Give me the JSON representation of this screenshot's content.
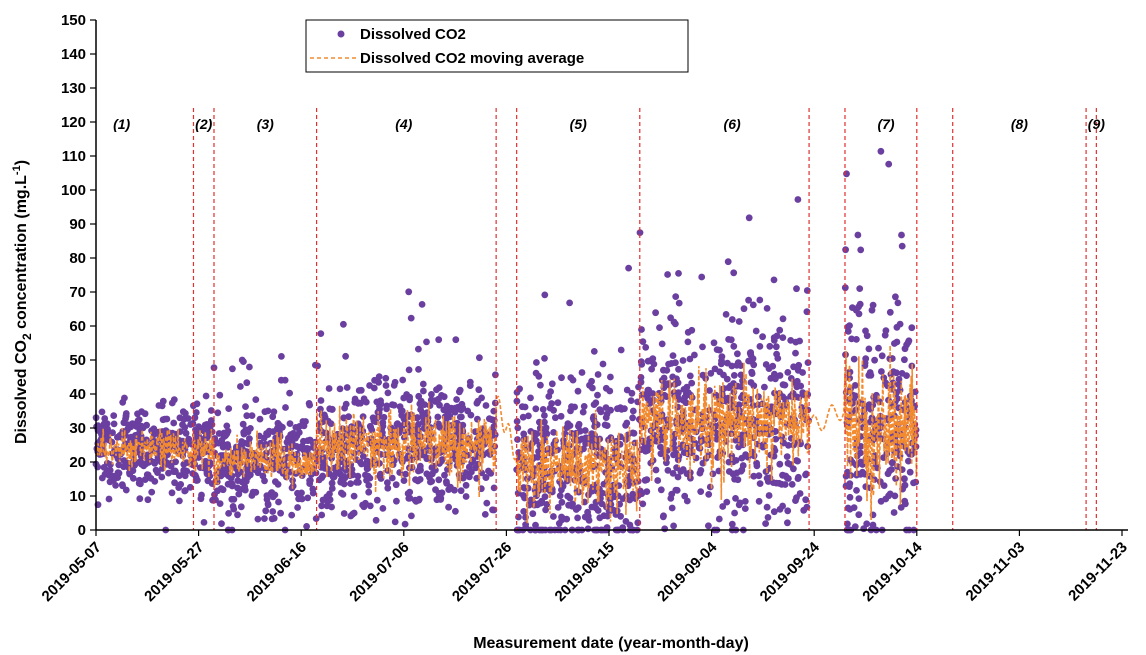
{
  "chart_data": {
    "type": "scatter",
    "ylabel": "Dissolved CO",
    "ylabel_sub": "2",
    "ylabel_rest": " concentration (mg.L",
    "ylabel_sup": "-1",
    "ylabel_end": ")",
    "xlabel": "Measurement date (year-month-day)",
    "ylim": [
      0,
      150
    ],
    "yticks": [
      0,
      10,
      20,
      30,
      40,
      50,
      60,
      70,
      80,
      90,
      100,
      110,
      120,
      130,
      140,
      150
    ],
    "xlim": [
      "2019-05-07",
      "2019-11-23"
    ],
    "xticks": [
      "2019-05-07",
      "2019-05-27",
      "2019-06-16",
      "2019-07-06",
      "2019-07-26",
      "2019-08-15",
      "2019-09-04",
      "2019-09-24",
      "2019-10-14",
      "2019-11-03",
      "2019-11-23"
    ],
    "legend": {
      "position": "top-center"
    },
    "colors": {
      "points": "#6a3fa0",
      "average": "#f28b30",
      "period_lines": "#e03030"
    },
    "series": [
      {
        "name": "Dissolved CO2",
        "style": "points"
      },
      {
        "name": "Dissolved CO2 moving average",
        "style": "dashed-line"
      }
    ],
    "period_boundaries": [
      "2019-05-26",
      "2019-05-30",
      "2019-06-19",
      "2019-07-24",
      "2019-07-28",
      "2019-08-21",
      "2019-09-23",
      "2019-09-30",
      "2019-10-14",
      "2019-10-21",
      "2019-11-16",
      "2019-11-18"
    ],
    "periods": [
      {
        "label": "(1)",
        "date": "2019-05-12"
      },
      {
        "label": "(2)",
        "date": "2019-05-28"
      },
      {
        "label": "(3)",
        "date": "2019-06-09"
      },
      {
        "label": "(4)",
        "date": "2019-07-06"
      },
      {
        "label": "(5)",
        "date": "2019-08-09"
      },
      {
        "label": "(6)",
        "date": "2019-09-08"
      },
      {
        "label": "(7)",
        "date": "2019-10-08"
      },
      {
        "label": "(8)",
        "date": "2019-11-03"
      },
      {
        "label": "(9)",
        "date": "2019-11-18"
      }
    ],
    "segments": [
      {
        "start": "2019-05-07",
        "end": "2019-05-26",
        "mean": 24,
        "spread": 6,
        "max": 43,
        "n": 300
      },
      {
        "start": "2019-05-26",
        "end": "2019-05-30",
        "mean": 24,
        "spread": 7,
        "max": 43,
        "n": 70
      },
      {
        "start": "2019-05-30",
        "end": "2019-06-19",
        "mean": 20,
        "spread": 8,
        "max": 52,
        "n": 320
      },
      {
        "start": "2019-06-19",
        "end": "2019-07-24",
        "mean": 25,
        "spread": 10,
        "max": 72,
        "n": 560
      },
      {
        "start": "2019-07-28",
        "end": "2019-08-21",
        "mean": 18,
        "spread": 13,
        "max": 80,
        "n": 430
      },
      {
        "start": "2019-08-21",
        "end": "2019-09-23",
        "mean": 32,
        "spread": 15,
        "max": 98,
        "n": 560
      },
      {
        "start": "2019-09-30",
        "end": "2019-10-14",
        "mean": 30,
        "spread": 18,
        "max": 114,
        "n": 260
      }
    ],
    "average_gaps": [
      {
        "start": "2019-07-24",
        "end": "2019-07-28",
        "from": 38,
        "to": 22
      },
      {
        "start": "2019-09-23",
        "end": "2019-09-30",
        "from": 30,
        "to": 36
      }
    ]
  }
}
